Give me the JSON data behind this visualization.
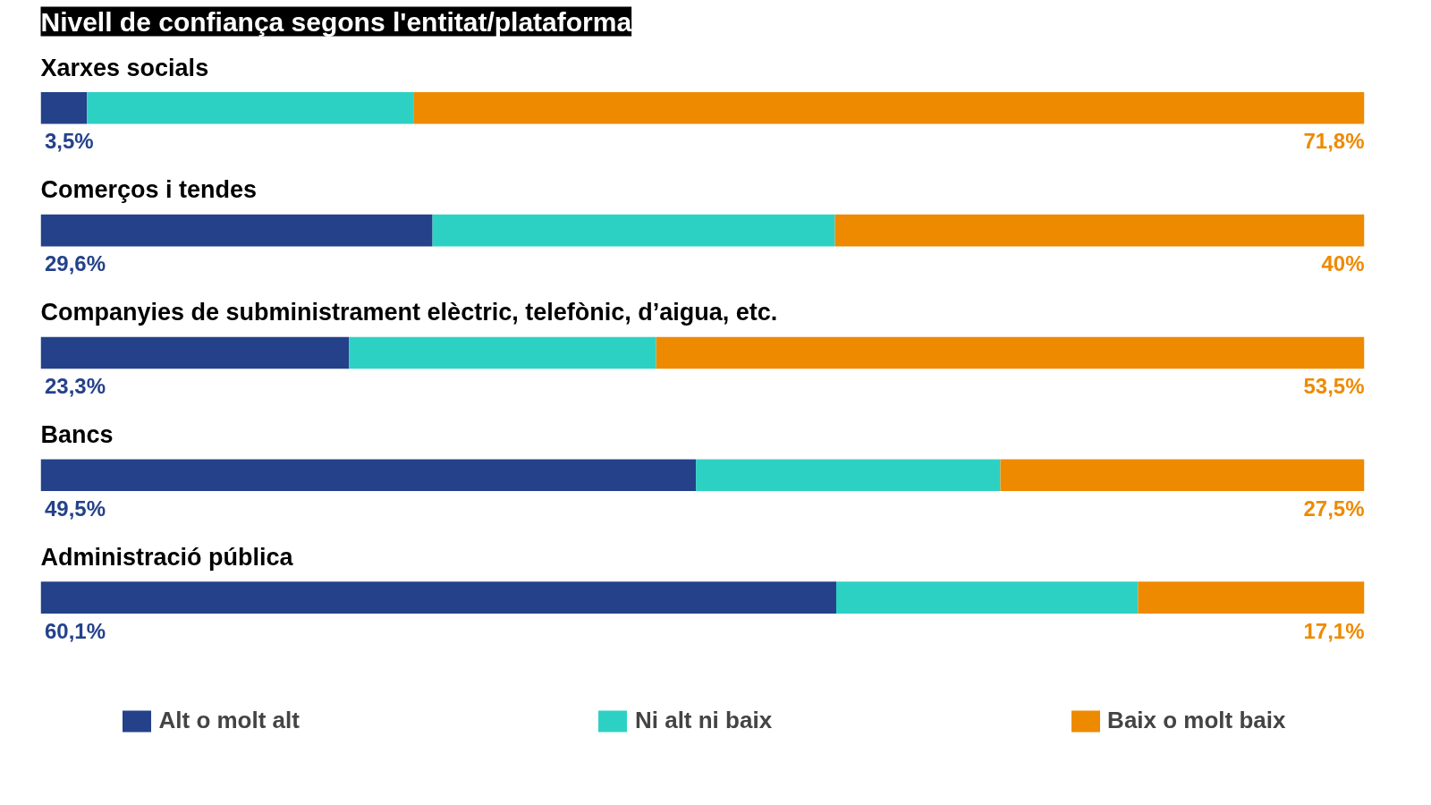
{
  "chart_data": {
    "type": "bar",
    "orientation": "horizontal",
    "stacked": true,
    "title": "Nivell de confiança segons l'entitat/plataforma",
    "categories": [
      "Xarxes socials",
      "Comerços i tendes",
      "Companyies de subministrament elèctric, telefònic, d’aigua, etc.",
      "Bancs",
      "Administració pública"
    ],
    "xlim": [
      0,
      100
    ],
    "series": [
      {
        "name": "Alt o molt alt",
        "color": "#24418a",
        "values": [
          3.5,
          29.6,
          23.3,
          49.5,
          60.1
        ],
        "value_labels": [
          "3,5%",
          "29,6%",
          "23,3%",
          "49,5%",
          "60,1%"
        ]
      },
      {
        "name": "Ni alt ni baix",
        "color": "#2dd1c4",
        "values": [
          24.7,
          30.4,
          23.2,
          23.0,
          22.8
        ],
        "value_labels": [
          null,
          null,
          null,
          null,
          null
        ]
      },
      {
        "name": "Baix o molt baix",
        "color": "#ee8a00",
        "values": [
          71.8,
          40,
          53.5,
          27.5,
          17.1
        ],
        "value_labels": [
          "71,8%",
          "40%",
          "53,5%",
          "27,5%",
          "17,1%"
        ]
      }
    ],
    "legend": "bottom"
  }
}
